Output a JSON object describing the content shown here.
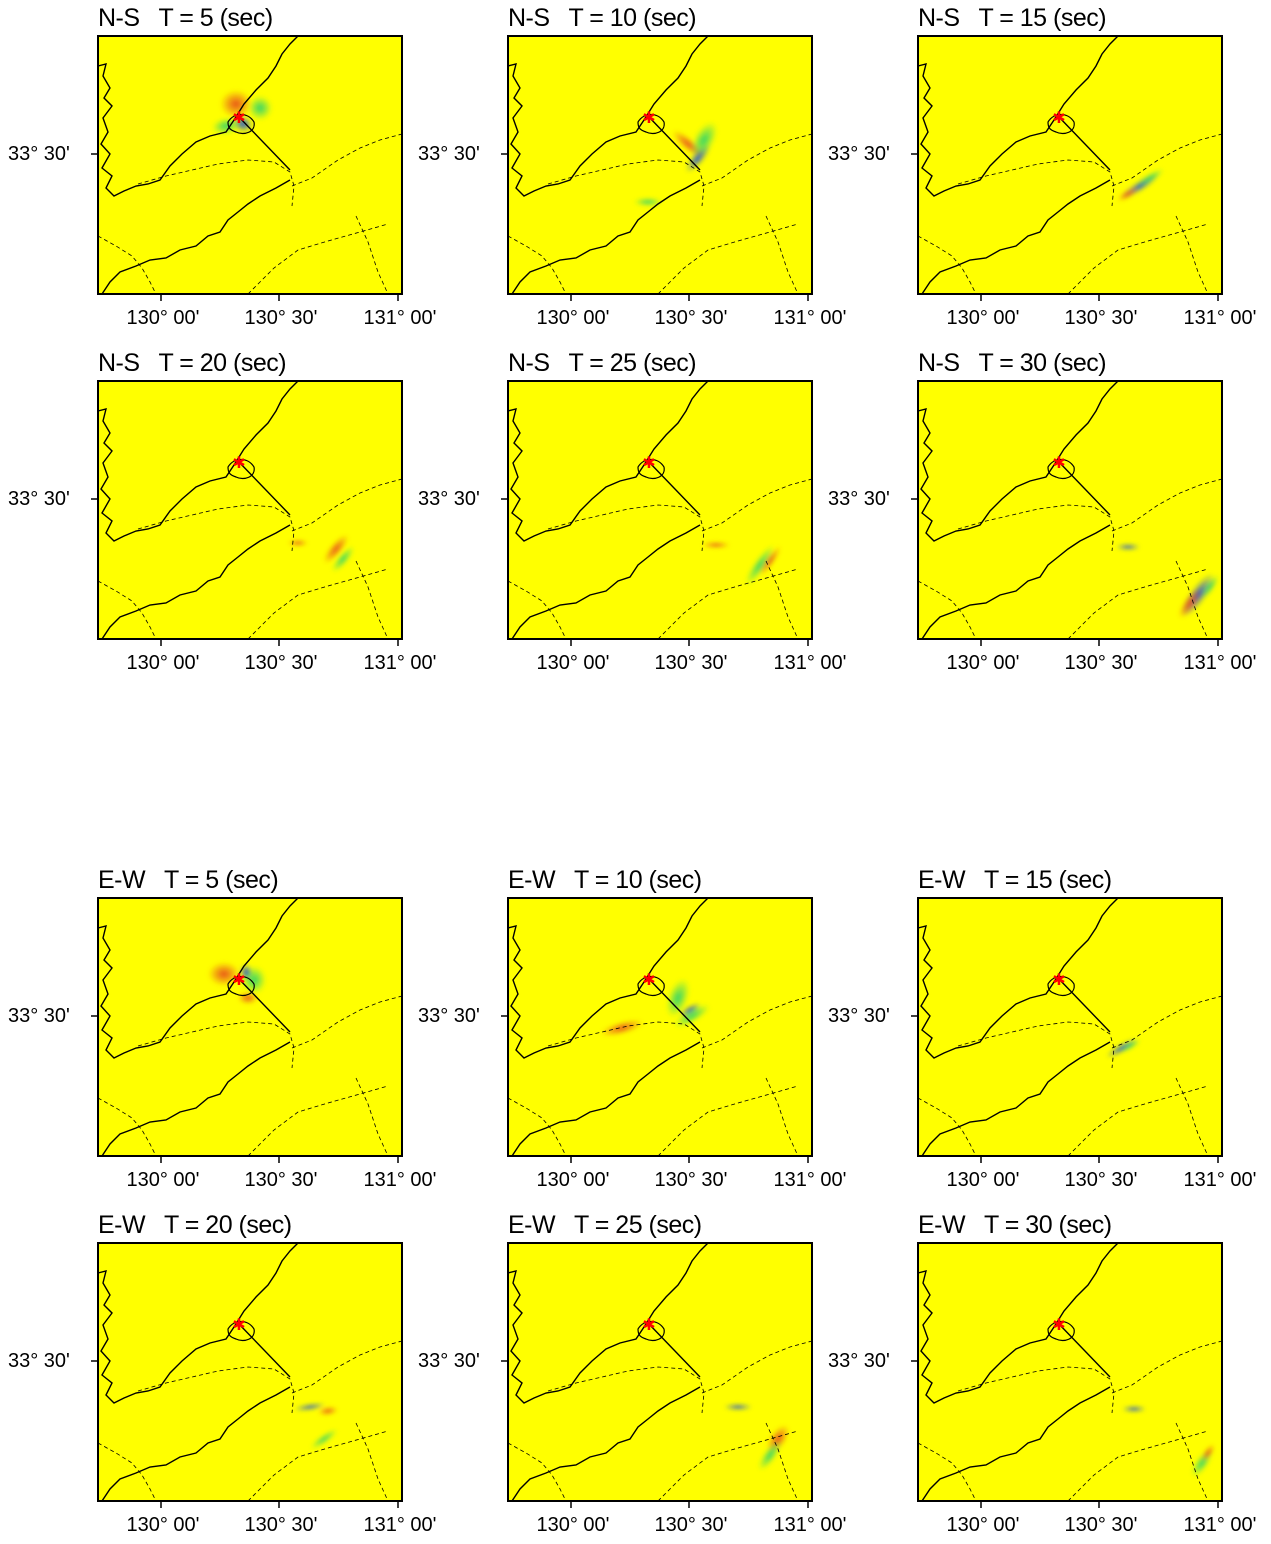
{
  "panels": [
    {
      "title": "N-S   T = 5 (sec)",
      "ylabel": "33° 30'",
      "xticks": [
        "130° 00'",
        "130° 30'",
        "131° 00'"
      ],
      "colors": {
        "field": "#ffff00"
      }
    },
    {
      "title": "N-S   T = 10 (sec)",
      "ylabel": "33° 30'",
      "xticks": [
        "130° 00'",
        "130° 30'",
        "131° 00'"
      ]
    },
    {
      "title": "N-S   T = 15 (sec)",
      "ylabel": "33° 30'",
      "xticks": [
        "130° 00'",
        "130° 30'",
        "131° 00'"
      ]
    },
    {
      "title": "N-S   T = 20 (sec)",
      "ylabel": "33° 30'",
      "xticks": [
        "130° 00'",
        "130° 30'",
        "131° 00'"
      ]
    },
    {
      "title": "N-S   T = 25 (sec)",
      "ylabel": "33° 30'",
      "xticks": [
        "130° 00'",
        "130° 30'",
        "131° 00'"
      ]
    },
    {
      "title": "N-S   T = 30 (sec)",
      "ylabel": "33° 30'",
      "xticks": [
        "130° 00'",
        "130° 30'",
        "131° 00'"
      ]
    },
    {
      "title": "E-W   T = 5 (sec)",
      "ylabel": "33° 30'",
      "xticks": [
        "130° 00'",
        "130° 30'",
        "131° 00'"
      ]
    },
    {
      "title": "E-W   T = 10 (sec)",
      "ylabel": "33° 30'",
      "xticks": [
        "130° 00'",
        "130° 30'",
        "131° 00'"
      ]
    },
    {
      "title": "E-W   T = 15 (sec)",
      "ylabel": "33° 30'",
      "xticks": [
        "130° 00'",
        "130° 30'",
        "131° 00'"
      ]
    },
    {
      "title": "E-W   T = 20 (sec)",
      "ylabel": "33° 30'",
      "xticks": [
        "130° 00'",
        "130° 30'",
        "131° 00'"
      ]
    },
    {
      "title": "E-W   T = 25 (sec)",
      "ylabel": "33° 30'",
      "xticks": [
        "130° 00'",
        "130° 30'",
        "131° 00'"
      ]
    },
    {
      "title": "E-W   T = 30 (sec)",
      "ylabel": "33° 30'",
      "xticks": [
        "130° 00'",
        "130° 30'",
        "131° 00'"
      ]
    }
  ],
  "colors": {
    "field": "#ffff00",
    "epicenter": "#ff0000",
    "positive": "#e8501a",
    "negative": "#1a4fd8",
    "transition": "#2fd46a"
  }
}
